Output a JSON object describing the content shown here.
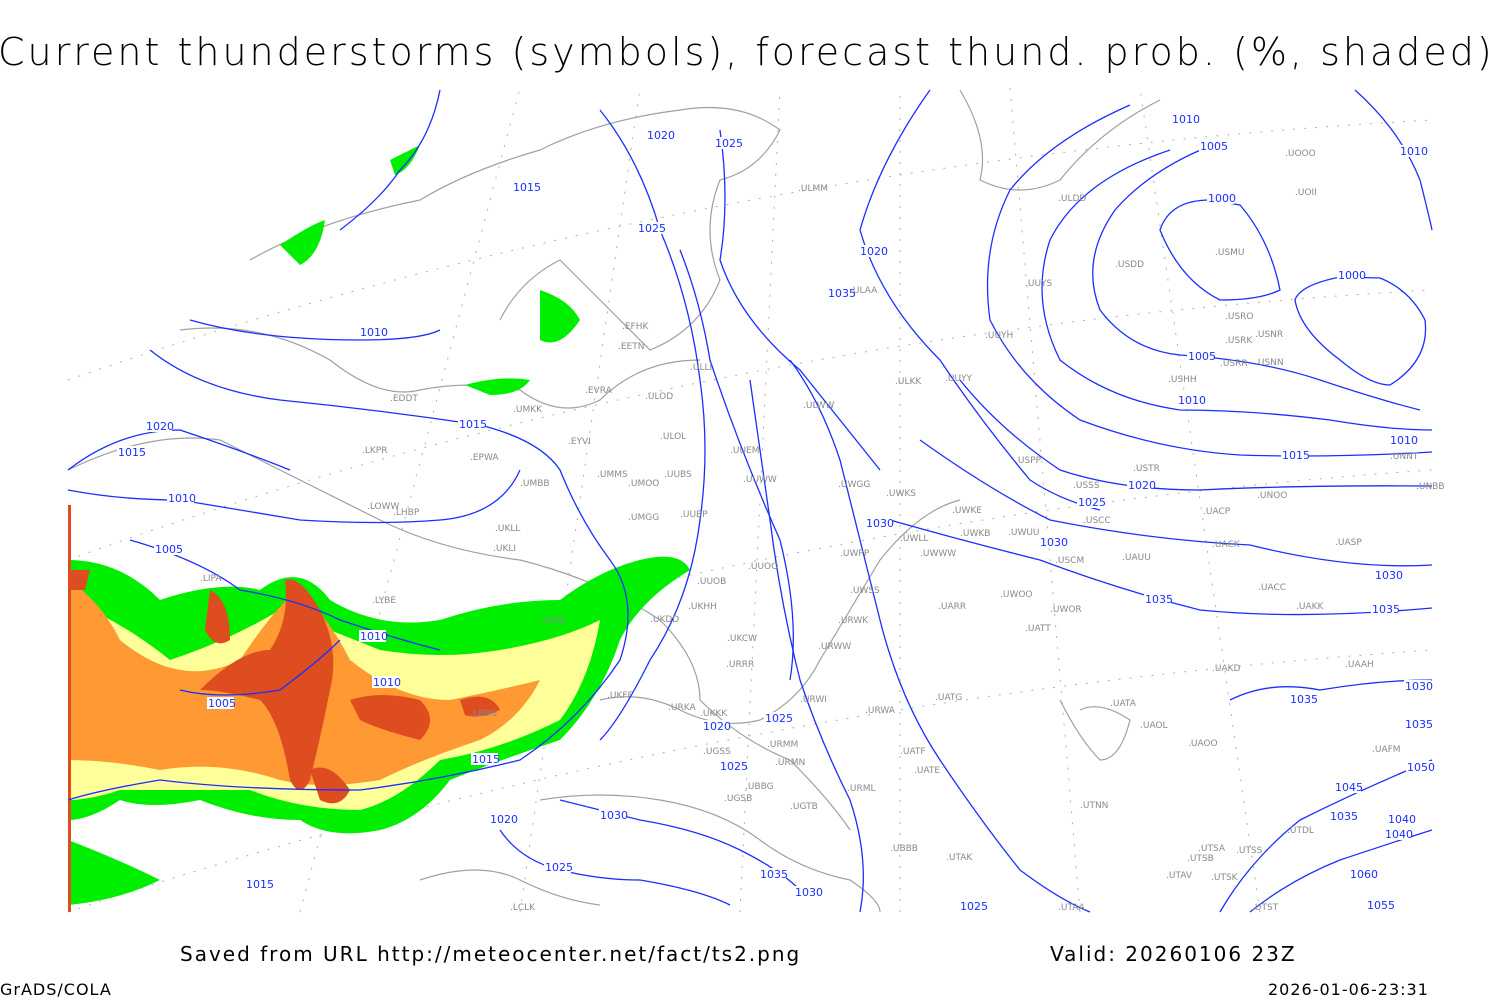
{
  "title": "Current thunderstorms (symbols), forecast thund. prob. (%, shaded)",
  "footer": {
    "source": "Saved from URL http://meteocenter.net/fact/ts2.png",
    "valid": "Valid: 20260106 23Z",
    "software": "GrADS/COLA",
    "timestamp": "2026-01-06-23:31"
  },
  "colors": {
    "isobar": "#1a2fff",
    "coastline": "#a0a0a0",
    "prob_low": "#00ee00",
    "prob_mid": "#ffff99",
    "prob_high": "#ff9933",
    "prob_max": "#dd4d1f"
  },
  "isobar_labels": [
    "1020",
    "1025",
    "1015",
    "1025",
    "1010",
    "1010",
    "1020",
    "1015",
    "1020",
    "1010",
    "1015",
    "1005",
    "1010",
    "1010",
    "1005",
    "1015",
    "1020",
    "1025",
    "1020",
    "1025",
    "1030",
    "1030",
    "1035",
    "1040",
    "1010",
    "1005",
    "1000",
    "1000",
    "1010",
    "1005",
    "1010",
    "1015",
    "1020",
    "1025",
    "1030",
    "1035",
    "1030",
    "1035",
    "1035",
    "1035",
    "1035",
    "1040",
    "1045",
    "1050",
    "1060",
    "1055",
    "1025",
    "1030",
    "1035",
    "1030",
    "1025",
    "1015"
  ],
  "stations": [
    "ULMM",
    "ULDD",
    "USDD",
    "USMU",
    "UOII",
    "UOOO",
    "UUYS",
    "UUYH",
    "USRO",
    "USRK",
    "USNR",
    "USRR",
    "USNN",
    "USHH",
    "EFHK",
    "EETN",
    "ULLI",
    "EVRA",
    "ULOD",
    "ULAA",
    "ULKK",
    "UUYY",
    "ULWW",
    "EDDT",
    "UMKK",
    "EYVI",
    "ULOL",
    "UUEM",
    "LKPR",
    "EPWA",
    "UMMS",
    "UMOO",
    "UUBS",
    "UUWW",
    "UWGG",
    "UWKS",
    "USPP",
    "USTR",
    "USSS",
    "UNOO",
    "UNBB",
    "UNNT",
    "LOWW",
    "UMBB",
    "UKLL",
    "UKLI",
    "LHBP",
    "UMGG",
    "UUBP",
    "UWKE",
    "UWKB",
    "UWUU",
    "USCC",
    "UACP",
    "UACK",
    "UASP",
    "UWLL",
    "UWWW",
    "USCM",
    "UAUU",
    "UWPP",
    "UUOO",
    "UUOB",
    "UACC",
    "UAKK",
    "UWSS",
    "UARR",
    "UWOO",
    "UWOR",
    "URWK",
    "UATT",
    "UKHH",
    "UKDD",
    "UKCW",
    "URWW",
    "URRR",
    "UAKD",
    "UAAH",
    "UKFF",
    "URKA",
    "URWI",
    "UATG",
    "URWA",
    "UATA",
    "UAOL",
    "UKKK",
    "URMM",
    "UATE",
    "UATF",
    "UAOO",
    "UAFM",
    "UGSS",
    "URMN",
    "URML",
    "UTNN",
    "UGTB",
    "UGSB",
    "UBBG",
    "UTSA",
    "UTSB",
    "UTSS",
    "UTDL",
    "UTAK",
    "UTAV",
    "UTSK",
    "UTST",
    "UBBB",
    "LCLK",
    "UTAA",
    "LIPA",
    "LYBE",
    "LUKK",
    "LBBG"
  ]
}
